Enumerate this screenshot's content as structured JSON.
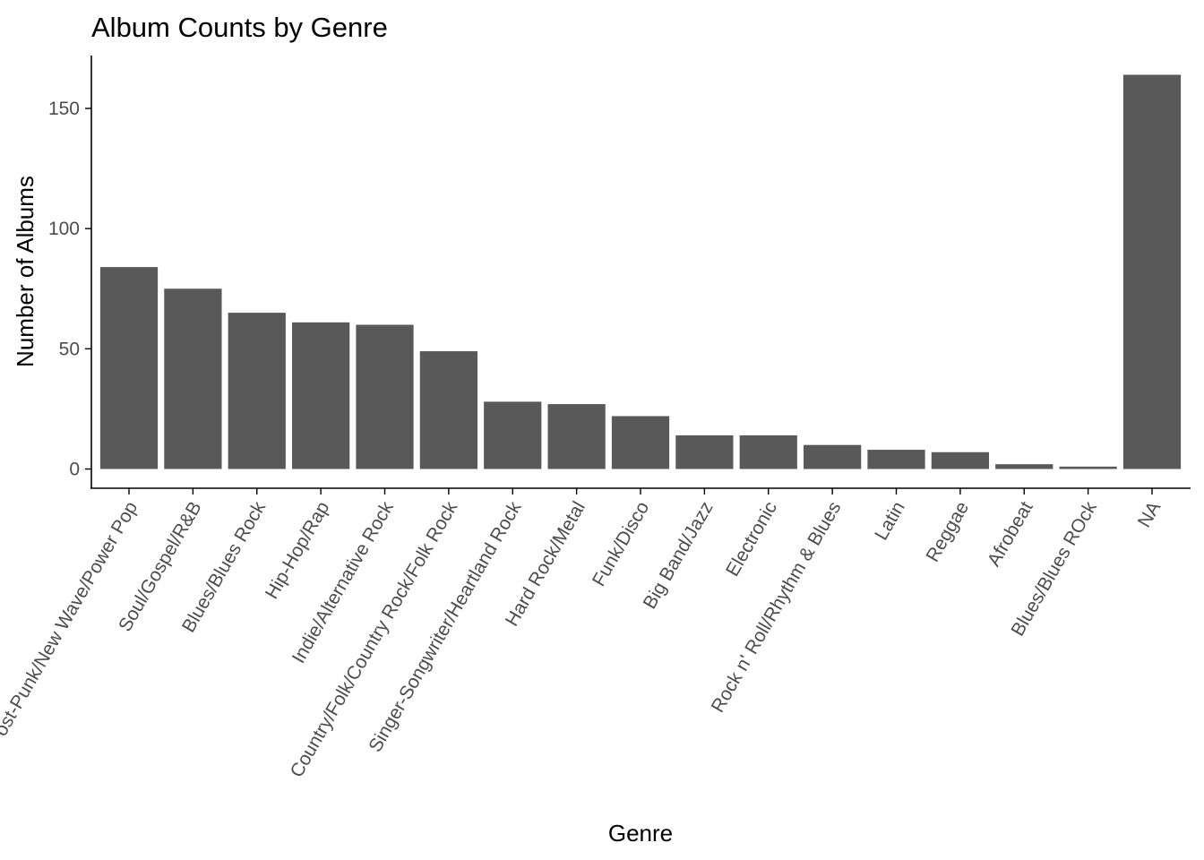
{
  "chart_data": {
    "type": "bar",
    "title": "Album Counts by Genre",
    "xlabel": "Genre",
    "ylabel": "Number of Albums",
    "categories": [
      "Post-Punk/New Wave/Power Pop",
      "Soul/Gospel/R&B",
      "Blues/Blues Rock",
      "Hip-Hop/Rap",
      "Indie/Alternative Rock",
      "Country/Folk/Country Rock/Folk Rock",
      "Singer-Songwriter/Heartland Rock",
      "Hard Rock/Metal",
      "Funk/Disco",
      "Big Band/Jazz",
      "Electronic",
      "Rock n' Roll/Rhythm & Blues",
      "Latin",
      "Reggae",
      "Afrobeat",
      "Blues/Blues ROck",
      "NA"
    ],
    "values": [
      84,
      75,
      65,
      61,
      60,
      49,
      28,
      27,
      22,
      14,
      14,
      10,
      8,
      7,
      2,
      1,
      164
    ],
    "ylim": [
      -8,
      172
    ],
    "yticks": [
      0,
      50,
      100,
      150
    ],
    "bar_color": "#595959",
    "axis_color": "#000000",
    "tick_label_color": "#4d4d4d",
    "grid": false,
    "legend": "none",
    "x_tick_rotation": 60
  }
}
